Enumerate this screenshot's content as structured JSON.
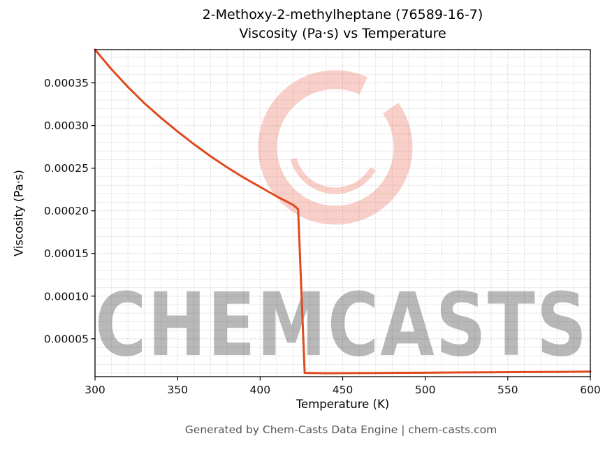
{
  "watermark": {
    "text": "CHEMCASTS",
    "logo": "chemcasts-ring-logo",
    "color": "#e8604a",
    "opacity": 0.3
  },
  "footer": {
    "text": "Generated by Chem-Casts Data Engine | chem-casts.com"
  },
  "chart_data": {
    "type": "line",
    "title": "2-Methoxy-2-methylheptane (76589-16-7)\nViscosity (Pa·s) vs Temperature",
    "title_line1": "2-Methoxy-2-methylheptane (76589-16-7)",
    "title_line2": "Viscosity (Pa·s) vs Temperature",
    "xlabel": "Temperature (K)",
    "ylabel": "Viscosity (Pa·s)",
    "xlim": [
      300,
      600
    ],
    "ylim": [
      5.6e-06,
      0.000389
    ],
    "x_ticks": [
      300,
      350,
      400,
      450,
      500,
      550,
      600
    ],
    "x_minor_step": 10,
    "y_ticks": [
      5e-05,
      0.0001,
      0.00015,
      0.0002,
      0.00025,
      0.0003,
      0.00035
    ],
    "y_tick_labels": [
      "0.00005",
      "0.00010",
      "0.00015",
      "0.00020",
      "0.00025",
      "0.00030",
      "0.00035"
    ],
    "y_minor_step": 1e-05,
    "grid": true,
    "legend": false,
    "line_color": "#df4a1e",
    "line_width": 3,
    "series": [
      {
        "name": "Viscosity (Pa·s)",
        "x": [
          300,
          310,
          320,
          330,
          340,
          350,
          360,
          370,
          380,
          390,
          400,
          410,
          420,
          423,
          427,
          440,
          460,
          480,
          500,
          520,
          540,
          560,
          580,
          600
        ],
        "y": [
          0.000389,
          0.000366,
          0.000345,
          0.000326,
          0.000309,
          0.000293,
          0.000278,
          0.000264,
          0.000251,
          0.000239,
          0.000228,
          0.000217,
          0.000207,
          0.000202,
          1e-05,
          9.6e-06,
          9.8e-06,
          1e-05,
          1.02e-05,
          1.05e-05,
          1.07e-05,
          1.1e-05,
          1.12e-05,
          1.15e-05
        ]
      }
    ]
  }
}
